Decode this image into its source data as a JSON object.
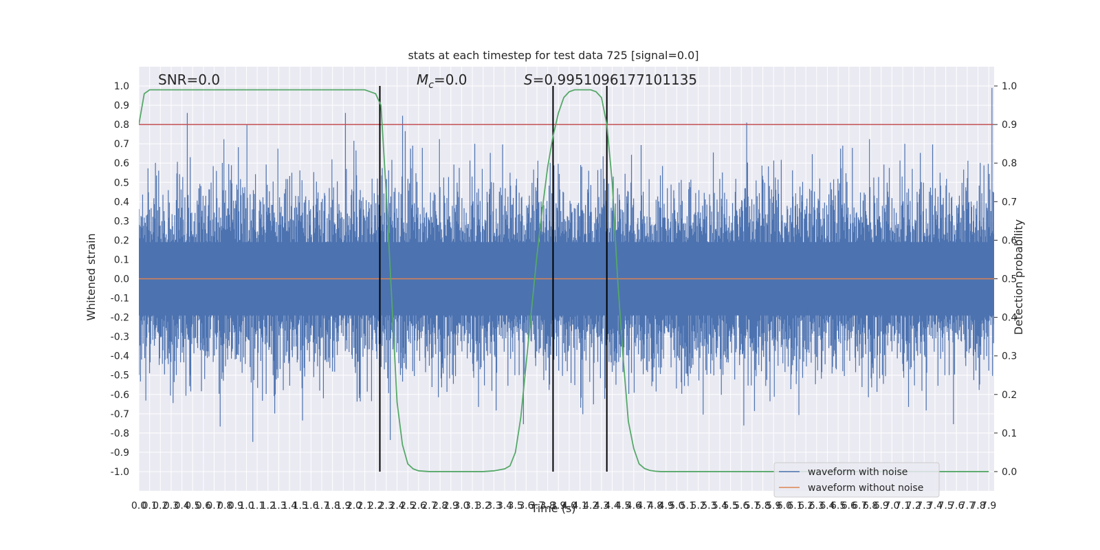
{
  "chart_data": {
    "type": "line",
    "title": "stats at each timestep for test data 725 [signal=0.0]",
    "xlabel": "Time (s)",
    "ylabel": "Whitened strain",
    "y2label": "Detection probability",
    "xlim": [
      0.0,
      7.95
    ],
    "ylim": [
      -1.1,
      1.1
    ],
    "y2lim": [
      -0.05,
      1.05
    ],
    "x_tick_step": 0.1,
    "x_tick_last": 7.9,
    "y_ticks": [
      -1.0,
      -0.9,
      -0.8,
      -0.7,
      -0.6,
      -0.5,
      -0.4,
      -0.3,
      -0.2,
      -0.1,
      0.0,
      0.1,
      0.2,
      0.3,
      0.4,
      0.5,
      0.6,
      0.7,
      0.8,
      0.9,
      1.0
    ],
    "y2_ticks": [
      0.0,
      0.1,
      0.2,
      0.3,
      0.4,
      0.5,
      0.6,
      0.7,
      0.8,
      0.9,
      1.0
    ],
    "grid": true,
    "legend_placement": "lower right",
    "annotations": {
      "snr": "SNR=0.0",
      "mc_prefix": "M",
      "mc_sub": "c",
      "mc_value": "=0.0",
      "s_prefix": "S",
      "s_value": "=0.9951096177101135"
    },
    "series": [
      {
        "name": "waveform with noise",
        "color": "#4c72b0",
        "style": "noise",
        "x_range": [
          0.0,
          7.95
        ],
        "samples": 1600,
        "amplitude_max": 1.0,
        "peak_values": [
          0.86,
          0.86,
          0.81,
          0.99
        ]
      },
      {
        "name": "waveform without noise",
        "color": "#dd8452",
        "x": [
          0.0,
          7.95
        ],
        "y": [
          0.0,
          0.0
        ]
      },
      {
        "color": "#55a868",
        "axis": "right",
        "x": [
          0.0,
          0.05,
          0.1,
          0.2,
          0.3,
          0.5,
          1.0,
          1.5,
          2.0,
          2.1,
          2.15,
          2.2,
          2.25,
          2.3,
          2.35,
          2.4,
          2.45,
          2.5,
          2.55,
          2.6,
          2.7,
          2.8,
          3.0,
          3.2,
          3.3,
          3.4,
          3.45,
          3.5,
          3.55,
          3.6,
          3.65,
          3.7,
          3.75,
          3.8,
          3.85,
          3.9,
          3.95,
          4.0,
          4.05,
          4.1,
          4.15,
          4.2,
          4.25,
          4.3,
          4.35,
          4.4,
          4.45,
          4.5,
          4.55,
          4.6,
          4.65,
          4.7,
          4.75,
          4.8,
          4.85,
          4.9,
          5.0,
          5.2,
          7.9
        ],
        "y": [
          0.9,
          0.98,
          0.99,
          0.99,
          0.99,
          0.99,
          0.99,
          0.99,
          0.99,
          0.99,
          0.985,
          0.98,
          0.95,
          0.72,
          0.45,
          0.18,
          0.07,
          0.02,
          0.007,
          0.002,
          0.0,
          0.0,
          0.0,
          0.0,
          0.002,
          0.007,
          0.015,
          0.05,
          0.14,
          0.28,
          0.42,
          0.56,
          0.68,
          0.79,
          0.87,
          0.93,
          0.97,
          0.985,
          0.99,
          0.99,
          0.99,
          0.99,
          0.985,
          0.97,
          0.9,
          0.75,
          0.5,
          0.3,
          0.13,
          0.06,
          0.02,
          0.008,
          0.003,
          0.001,
          0.0,
          0.0,
          0.0,
          0.0,
          0.0
        ]
      }
    ],
    "threshold": {
      "y": 0.79,
      "color": "#c44e52"
    },
    "vlines_x": [
      2.24,
      3.85,
      4.35
    ],
    "vlines_color": "#000000"
  }
}
